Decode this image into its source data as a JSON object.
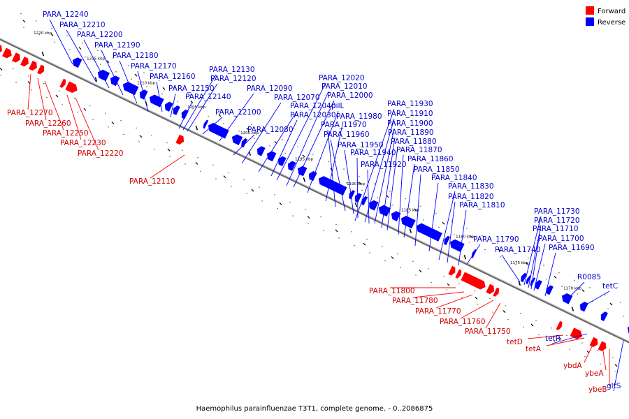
{
  "legend": {
    "items": [
      {
        "label": "Forward",
        "color": "#ff0000"
      },
      {
        "label": "Reverse",
        "color": "#0000ff"
      }
    ]
  },
  "caption": "Haemophilus parainfluenzae T3T1, complete genome. - 0..2086875",
  "colors": {
    "forward": "#ff0000",
    "reverse": "#0000ff",
    "forward_label": "#cc0000",
    "reverse_label": "#0000cc",
    "backbone": "#888888"
  },
  "scale": {
    "ticks": [
      "1220 kbp",
      "1215 kbp",
      "1210 kbp",
      "1205 kbp",
      "1200 kbp",
      "1195 kbp",
      "1190 kbp",
      "1185 kbp",
      "1180 kbp",
      "1175 kbp",
      "1170 kbp"
    ]
  },
  "genes": {
    "reverse": [
      "PARA_12240",
      "PARA_12210",
      "PARA_12200",
      "PARA_12190",
      "PARA_12180",
      "PARA_12170",
      "PARA_12160",
      "PARA_12150",
      "PARA_12140",
      "PARA_12130",
      "PARA_12120",
      "PARA_12100",
      "PARA_12090",
      "PARA_12080",
      "PARA_12070",
      "PARA_12040",
      "PARA_12030",
      "PARA_12020",
      "PARA_12010",
      "PARA_12000",
      "pilL",
      "PARA_11980",
      "PARA_11970",
      "PARA_11960",
      "PARA_11950",
      "PARA_11940",
      "PARA_11930",
      "PARA_11920",
      "PARA_11910",
      "PARA_11900",
      "PARA_11890",
      "PARA_11880",
      "PARA_11870",
      "PARA_11860",
      "PARA_11850",
      "PARA_11840",
      "PARA_11830",
      "PARA_11820",
      "PARA_11810",
      "PARA_11790",
      "PARA_11740",
      "PARA_11730",
      "PARA_11720",
      "PARA_11710",
      "PARA_11700",
      "PARA_11690",
      "R0085",
      "tetC",
      "tetR",
      "gltS"
    ],
    "forward": [
      "PARA_12270",
      "PARA_12260",
      "PARA_12250",
      "PARA_12230",
      "PARA_12220",
      "PARA_12110",
      "PARA_11800",
      "PARA_11780",
      "PARA_11770",
      "PARA_11760",
      "PARA_11750",
      "tetD",
      "tetA",
      "ybdA",
      "ybeA",
      "ybeB"
    ]
  }
}
